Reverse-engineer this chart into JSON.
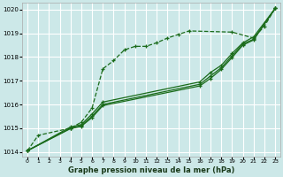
{
  "bg_color": "#cce8e8",
  "grid_color": "#ffffff",
  "line_color": "#1a6b1a",
  "xlabel": "Graphe pression niveau de la mer (hPa)",
  "xlim": [
    -0.5,
    23.5
  ],
  "ylim": [
    1013.8,
    1020.3
  ],
  "yticks": [
    1014,
    1015,
    1016,
    1017,
    1018,
    1019,
    1020
  ],
  "xticks": [
    0,
    1,
    2,
    3,
    4,
    5,
    6,
    7,
    8,
    9,
    10,
    11,
    12,
    13,
    14,
    15,
    16,
    17,
    18,
    19,
    20,
    21,
    22,
    23
  ],
  "series": [
    {
      "x": [
        0,
        1,
        4,
        5,
        6,
        7,
        8,
        9,
        10,
        11,
        12,
        13,
        14,
        15,
        19,
        21,
        22,
        23
      ],
      "y": [
        1014.05,
        1014.7,
        1015.0,
        1015.25,
        1015.85,
        1017.5,
        1017.85,
        1018.3,
        1018.45,
        1018.45,
        1018.6,
        1018.8,
        1018.95,
        1019.1,
        1019.05,
        1018.8,
        1019.3,
        1020.05
      ],
      "style": "dashed",
      "lw": 0.9
    },
    {
      "x": [
        0,
        4,
        5,
        6,
        7,
        16,
        17,
        18,
        19,
        20,
        21,
        23
      ],
      "y": [
        1014.05,
        1015.0,
        1015.1,
        1015.5,
        1016.0,
        1016.85,
        1017.2,
        1017.55,
        1018.05,
        1018.55,
        1018.75,
        1020.05
      ],
      "style": "solid",
      "lw": 0.9
    },
    {
      "x": [
        0,
        4,
        5,
        6,
        7,
        16,
        17,
        18,
        19,
        20,
        21,
        23
      ],
      "y": [
        1014.05,
        1015.05,
        1015.15,
        1015.6,
        1016.1,
        1016.95,
        1017.35,
        1017.65,
        1018.15,
        1018.6,
        1018.85,
        1020.05
      ],
      "style": "solid",
      "lw": 0.9
    },
    {
      "x": [
        0,
        4,
        5,
        6,
        7,
        16,
        17,
        18,
        19,
        20,
        21,
        23
      ],
      "y": [
        1014.05,
        1014.98,
        1015.08,
        1015.45,
        1015.95,
        1016.78,
        1017.1,
        1017.48,
        1017.98,
        1018.5,
        1018.72,
        1020.05
      ],
      "style": "solid",
      "lw": 0.9
    }
  ]
}
